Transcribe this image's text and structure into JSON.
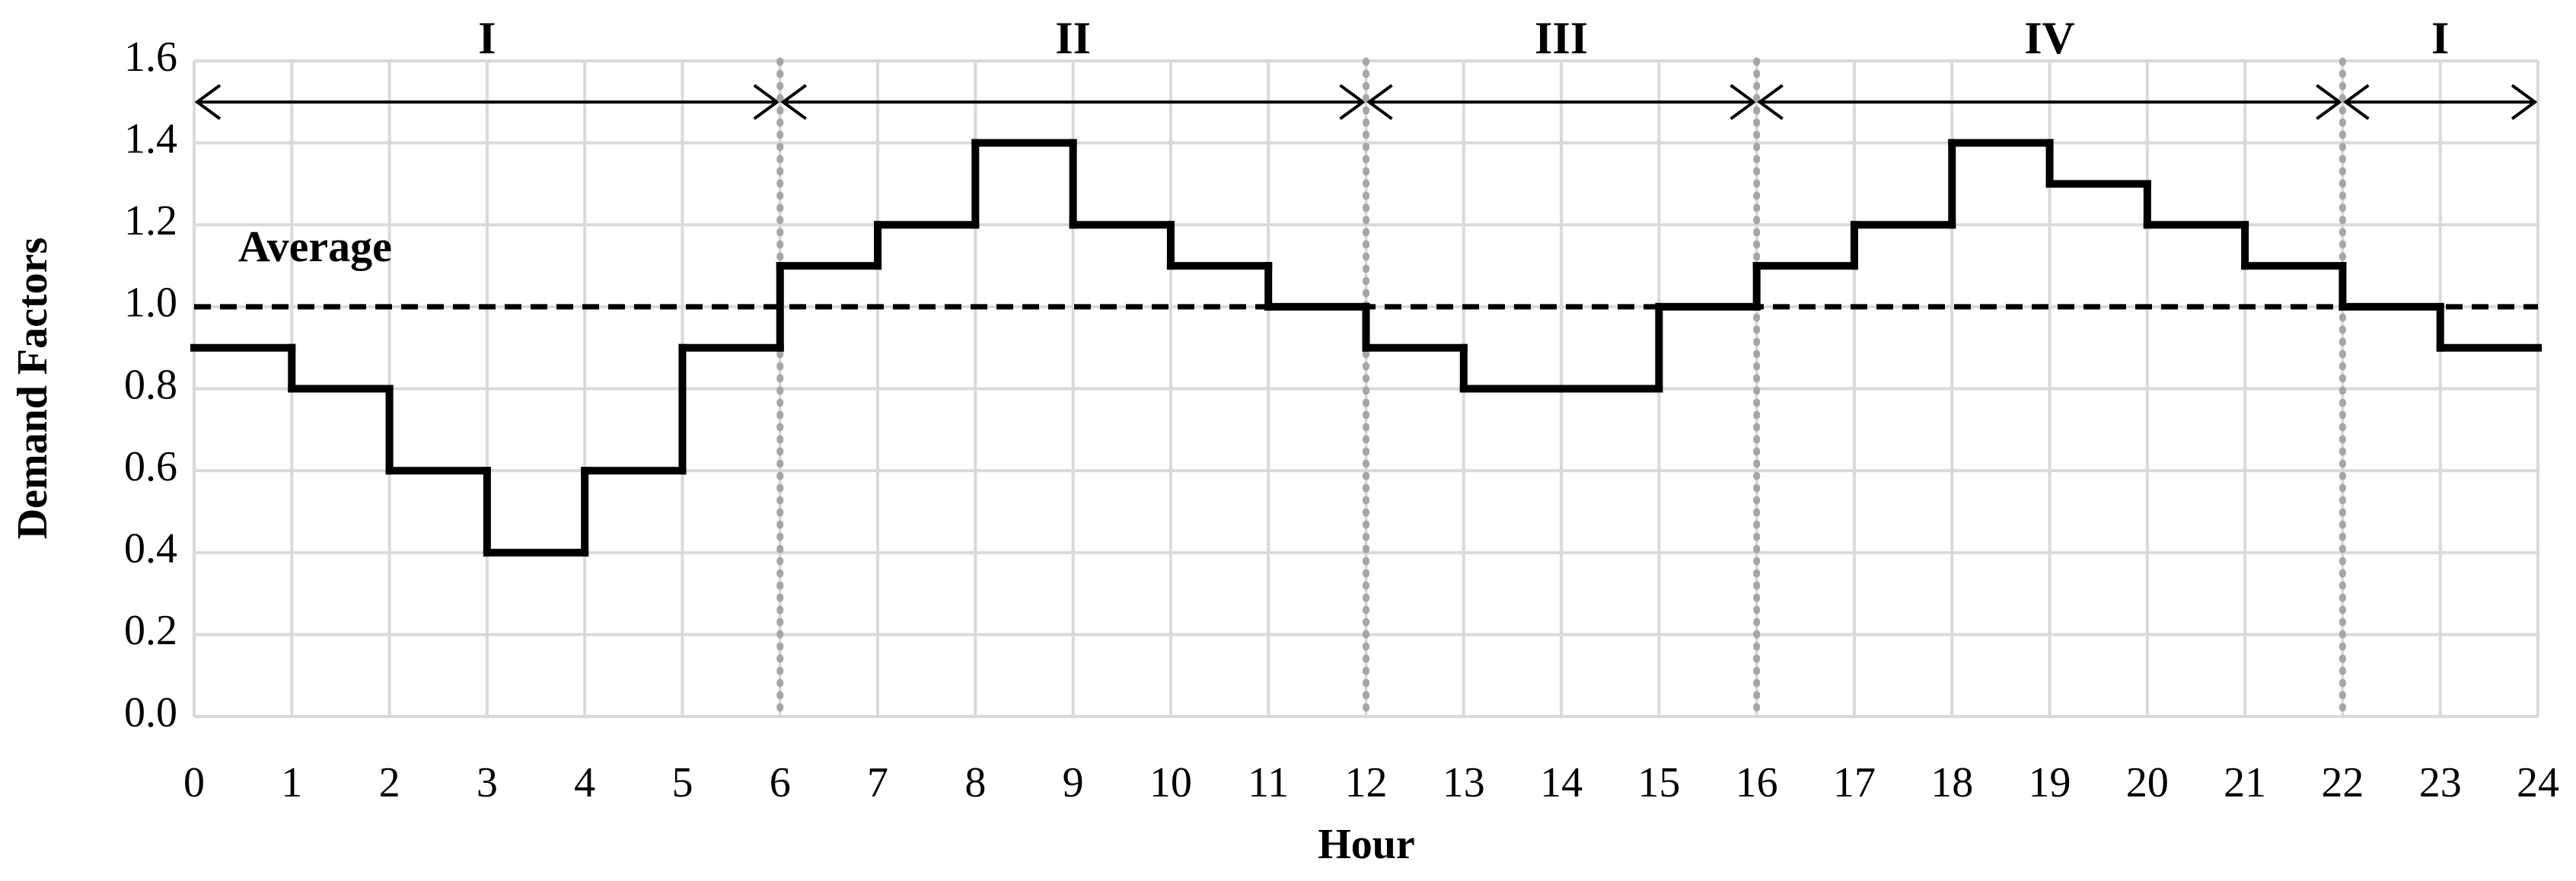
{
  "chart_data": {
    "type": "step",
    "x_label": "Hour",
    "y_label": "Demand Factors",
    "x": [
      0,
      1,
      2,
      3,
      4,
      5,
      6,
      7,
      8,
      9,
      10,
      11,
      12,
      13,
      14,
      15,
      16,
      17,
      18,
      19,
      20,
      21,
      22,
      23
    ],
    "values": [
      0.9,
      0.8,
      0.6,
      0.4,
      0.6,
      0.9,
      1.1,
      1.2,
      1.4,
      1.2,
      1.1,
      1.0,
      0.9,
      0.8,
      0.8,
      1.0,
      1.1,
      1.2,
      1.4,
      1.3,
      1.2,
      1.1,
      1.0,
      0.9
    ],
    "color": "#000000",
    "xlim": [
      0,
      24
    ],
    "xticks": [
      0,
      1,
      2,
      3,
      4,
      5,
      6,
      7,
      8,
      9,
      10,
      11,
      12,
      13,
      14,
      15,
      16,
      17,
      18,
      19,
      20,
      21,
      22,
      23,
      24
    ],
    "ylim": [
      0,
      1.6
    ],
    "yticks": [
      {
        "value": 0,
        "label": "0.0"
      },
      {
        "value": 0.2,
        "label": "0.2"
      },
      {
        "value": 0.4,
        "label": "0.4"
      },
      {
        "value": 0.6,
        "label": "0.6"
      },
      {
        "value": 0.8,
        "label": "0.8"
      },
      {
        "value": 1,
        "label": "1.0"
      },
      {
        "value": 1.2,
        "label": "1.2"
      },
      {
        "value": 1.4,
        "label": "1.4"
      },
      {
        "value": 1.6,
        "label": "1.6"
      }
    ],
    "grid": true,
    "average": {
      "label": "Average",
      "value": 1.0
    },
    "periods": [
      {
        "label": "I",
        "start": 0,
        "end": 6
      },
      {
        "label": "II",
        "start": 6,
        "end": 12
      },
      {
        "label": "III",
        "start": 12,
        "end": 16
      },
      {
        "label": "IV",
        "start": 16,
        "end": 22
      },
      {
        "label": "I",
        "start": 22,
        "end": 24
      }
    ]
  }
}
